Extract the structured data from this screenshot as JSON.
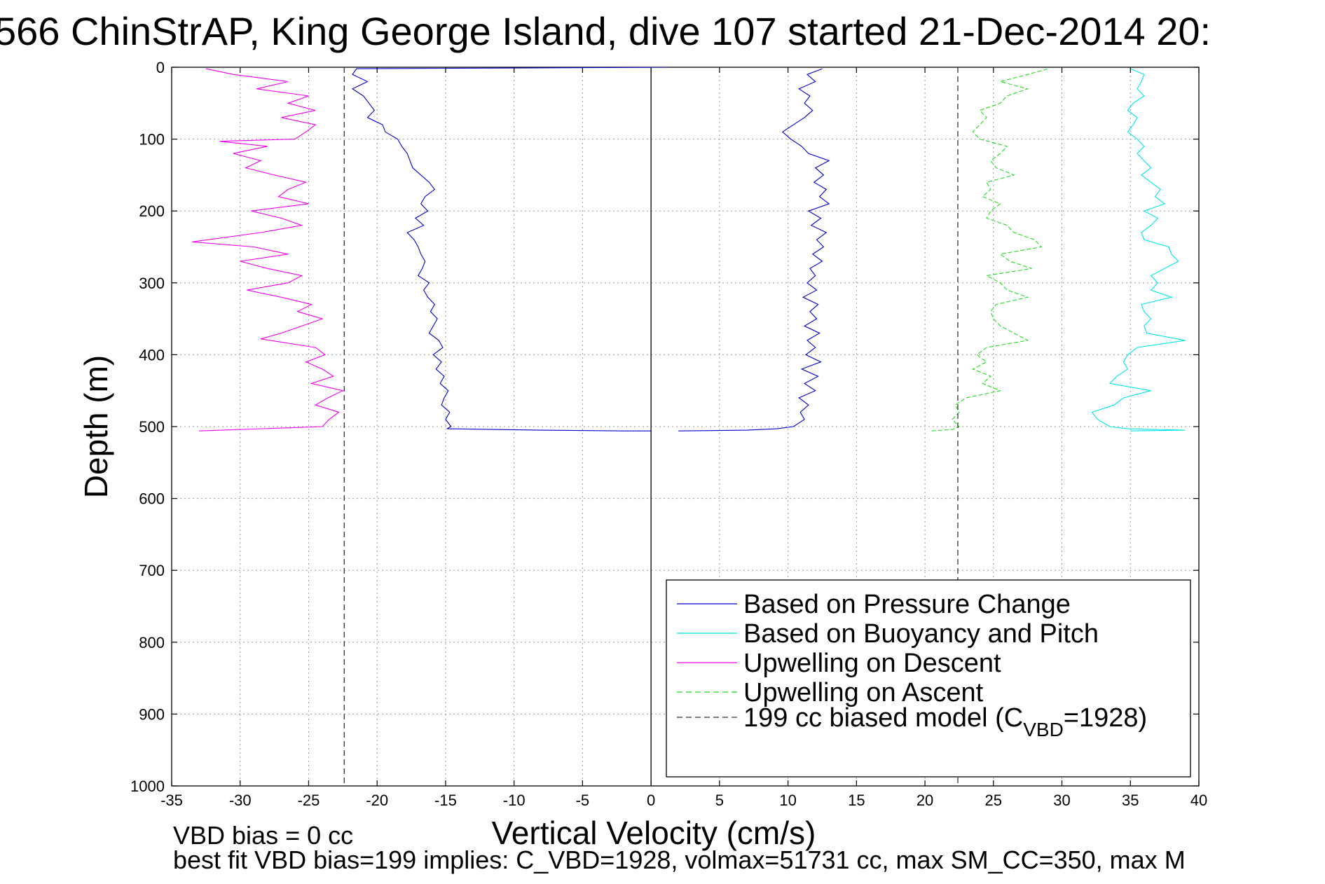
{
  "chart_data": {
    "type": "line",
    "title": "566 ChinStrAP, King George Island, dive 107 started 21-Dec-2014 20:",
    "xlabel": "Vertical Velocity (cm/s)",
    "ylabel": "Depth (m)",
    "xlim": [
      -35,
      40
    ],
    "ylim": [
      0,
      1000
    ],
    "y_reversed": true,
    "x_ticks": [
      -35,
      -30,
      -25,
      -20,
      -15,
      -10,
      -5,
      0,
      5,
      10,
      15,
      20,
      25,
      30,
      35,
      40
    ],
    "y_ticks": [
      0,
      100,
      200,
      300,
      400,
      500,
      600,
      700,
      800,
      900,
      1000
    ],
    "grid": true,
    "legend_position": "bottom-right",
    "annotations": [
      "VBD bias = 0 cc",
      "best fit VBD bias=199 implies: C_VBD=1928, volmax=51731 cc, max SM_CC=350, max M"
    ],
    "series": [
      {
        "name": "Based on Pressure Change",
        "color": "#0000cc",
        "style": "solid",
        "points": [
          [
            1.2,
            0
          ],
          [
            -21.5,
            2
          ],
          [
            -21.8,
            10
          ],
          [
            -20.7,
            20
          ],
          [
            -21.8,
            30
          ],
          [
            -21.0,
            40
          ],
          [
            -20.6,
            50
          ],
          [
            -20.2,
            60
          ],
          [
            -20.7,
            70
          ],
          [
            -19.6,
            80
          ],
          [
            -19.4,
            90
          ],
          [
            -18.5,
            100
          ],
          [
            -18.2,
            110
          ],
          [
            -17.8,
            120
          ],
          [
            -17.6,
            130
          ],
          [
            -17.4,
            140
          ],
          [
            -16.8,
            150
          ],
          [
            -16.2,
            160
          ],
          [
            -15.8,
            170
          ],
          [
            -16.5,
            180
          ],
          [
            -16.8,
            190
          ],
          [
            -16.3,
            200
          ],
          [
            -17.2,
            210
          ],
          [
            -16.6,
            220
          ],
          [
            -17.8,
            230
          ],
          [
            -17.3,
            240
          ],
          [
            -17.0,
            250
          ],
          [
            -16.8,
            260
          ],
          [
            -16.5,
            270
          ],
          [
            -16.7,
            280
          ],
          [
            -17.0,
            290
          ],
          [
            -16.2,
            300
          ],
          [
            -16.6,
            310
          ],
          [
            -16.3,
            320
          ],
          [
            -15.8,
            330
          ],
          [
            -16.1,
            340
          ],
          [
            -15.6,
            350
          ],
          [
            -15.9,
            360
          ],
          [
            -16.2,
            370
          ],
          [
            -15.5,
            380
          ],
          [
            -15.2,
            390
          ],
          [
            -15.9,
            400
          ],
          [
            -15.3,
            410
          ],
          [
            -15.7,
            420
          ],
          [
            -15.1,
            430
          ],
          [
            -15.4,
            440
          ],
          [
            -14.8,
            450
          ],
          [
            -15.1,
            460
          ],
          [
            -15.3,
            470
          ],
          [
            -14.7,
            480
          ],
          [
            -15.0,
            490
          ],
          [
            -14.6,
            500
          ],
          [
            -14.9,
            503
          ],
          [
            -8.0,
            505
          ],
          [
            -2.0,
            506
          ],
          [
            0,
            506
          ]
        ]
      },
      {
        "name": "Based on Pressure Change",
        "color": "#0000cc",
        "style": "solid",
        "points": [
          [
            2.0,
            506
          ],
          [
            7.0,
            505
          ],
          [
            9.2,
            503
          ],
          [
            10.4,
            500
          ],
          [
            11.2,
            490
          ],
          [
            10.9,
            480
          ],
          [
            11.5,
            470
          ],
          [
            10.8,
            460
          ],
          [
            12.0,
            450
          ],
          [
            11.2,
            440
          ],
          [
            12.2,
            430
          ],
          [
            11.0,
            420
          ],
          [
            12.4,
            410
          ],
          [
            11.3,
            400
          ],
          [
            12.0,
            390
          ],
          [
            11.4,
            380
          ],
          [
            12.3,
            370
          ],
          [
            11.2,
            360
          ],
          [
            12.1,
            350
          ],
          [
            11.6,
            340
          ],
          [
            12.2,
            330
          ],
          [
            11.1,
            320
          ],
          [
            12.1,
            310
          ],
          [
            11.4,
            300
          ],
          [
            12.0,
            290
          ],
          [
            11.6,
            280
          ],
          [
            12.5,
            270
          ],
          [
            11.8,
            260
          ],
          [
            12.6,
            250
          ],
          [
            12.1,
            240
          ],
          [
            12.8,
            230
          ],
          [
            11.7,
            220
          ],
          [
            12.4,
            210
          ],
          [
            11.5,
            200
          ],
          [
            13.0,
            190
          ],
          [
            12.3,
            180
          ],
          [
            12.8,
            170
          ],
          [
            11.9,
            160
          ],
          [
            12.6,
            150
          ],
          [
            12.0,
            140
          ],
          [
            13.0,
            130
          ],
          [
            11.5,
            120
          ],
          [
            11.0,
            110
          ],
          [
            10.2,
            100
          ],
          [
            9.6,
            90
          ],
          [
            10.4,
            80
          ],
          [
            11.2,
            70
          ],
          [
            11.8,
            60
          ],
          [
            11.2,
            50
          ],
          [
            11.6,
            40
          ],
          [
            10.8,
            30
          ],
          [
            12.0,
            20
          ],
          [
            11.4,
            10
          ],
          [
            12.5,
            2
          ]
        ]
      },
      {
        "name": "Based on Buoyancy and Pitch",
        "color": "#00e5ee",
        "style": "solid",
        "points": [
          [
            35.0,
            506
          ],
          [
            39.0,
            505
          ],
          [
            34.8,
            503
          ],
          [
            33.5,
            500
          ],
          [
            32.6,
            490
          ],
          [
            32.2,
            480
          ],
          [
            33.8,
            470
          ],
          [
            34.5,
            460
          ],
          [
            36.5,
            450
          ],
          [
            33.5,
            440
          ],
          [
            34.0,
            430
          ],
          [
            34.8,
            420
          ],
          [
            34.5,
            410
          ],
          [
            34.8,
            400
          ],
          [
            35.5,
            390
          ],
          [
            39.0,
            380
          ],
          [
            36.2,
            370
          ],
          [
            36.0,
            360
          ],
          [
            36.5,
            350
          ],
          [
            36.0,
            340
          ],
          [
            35.8,
            330
          ],
          [
            38.0,
            320
          ],
          [
            36.5,
            310
          ],
          [
            37.0,
            300
          ],
          [
            36.5,
            290
          ],
          [
            37.5,
            280
          ],
          [
            38.5,
            270
          ],
          [
            38.0,
            260
          ],
          [
            37.8,
            250
          ],
          [
            36.0,
            240
          ],
          [
            35.8,
            230
          ],
          [
            36.5,
            220
          ],
          [
            37.0,
            210
          ],
          [
            36.0,
            200
          ],
          [
            37.5,
            190
          ],
          [
            36.8,
            180
          ],
          [
            37.2,
            170
          ],
          [
            36.5,
            160
          ],
          [
            35.8,
            150
          ],
          [
            36.5,
            140
          ],
          [
            36.0,
            130
          ],
          [
            35.5,
            120
          ],
          [
            36.0,
            110
          ],
          [
            35.5,
            100
          ],
          [
            34.8,
            90
          ],
          [
            35.2,
            80
          ],
          [
            35.5,
            70
          ],
          [
            34.8,
            60
          ],
          [
            35.2,
            50
          ],
          [
            36.0,
            40
          ],
          [
            35.5,
            30
          ],
          [
            35.8,
            20
          ],
          [
            36.0,
            10
          ],
          [
            35.0,
            2
          ]
        ]
      },
      {
        "name": "Upwelling on Descent",
        "color": "#ee00ee",
        "style": "solid",
        "points": [
          [
            -32.5,
            2
          ],
          [
            -30.5,
            10
          ],
          [
            -26.5,
            20
          ],
          [
            -28.8,
            30
          ],
          [
            -25.0,
            40
          ],
          [
            -26.5,
            50
          ],
          [
            -24.5,
            60
          ],
          [
            -27.0,
            70
          ],
          [
            -24.5,
            80
          ],
          [
            -25.2,
            90
          ],
          [
            -26.0,
            100
          ],
          [
            -31.5,
            103
          ],
          [
            -28.0,
            110
          ],
          [
            -30.5,
            120
          ],
          [
            -28.5,
            130
          ],
          [
            -29.6,
            140
          ],
          [
            -27.5,
            150
          ],
          [
            -25.2,
            160
          ],
          [
            -26.5,
            170
          ],
          [
            -27.2,
            180
          ],
          [
            -25.0,
            190
          ],
          [
            -29.2,
            200
          ],
          [
            -27.0,
            210
          ],
          [
            -25.5,
            220
          ],
          [
            -28.5,
            230
          ],
          [
            -33.5,
            243
          ],
          [
            -29.0,
            250
          ],
          [
            -26.5,
            260
          ],
          [
            -30.0,
            270
          ],
          [
            -28.0,
            280
          ],
          [
            -25.5,
            290
          ],
          [
            -26.5,
            300
          ],
          [
            -29.5,
            310
          ],
          [
            -27.0,
            320
          ],
          [
            -24.8,
            330
          ],
          [
            -25.8,
            340
          ],
          [
            -24.0,
            350
          ],
          [
            -25.5,
            360
          ],
          [
            -27.0,
            370
          ],
          [
            -28.5,
            378
          ],
          [
            -24.5,
            390
          ],
          [
            -23.8,
            400
          ],
          [
            -25.2,
            410
          ],
          [
            -24.0,
            420
          ],
          [
            -23.2,
            430
          ],
          [
            -24.8,
            440
          ],
          [
            -22.5,
            450
          ],
          [
            -23.6,
            460
          ],
          [
            -24.5,
            470
          ],
          [
            -22.8,
            480
          ],
          [
            -23.5,
            490
          ],
          [
            -24.0,
            500
          ],
          [
            -33.0,
            506
          ]
        ]
      },
      {
        "name": "Upwelling on Ascent",
        "color": "#22dd22",
        "style": "dashed",
        "points": [
          [
            20.5,
            506
          ],
          [
            22.0,
            504
          ],
          [
            22.5,
            500
          ],
          [
            22.0,
            490
          ],
          [
            22.5,
            480
          ],
          [
            22.2,
            470
          ],
          [
            23.0,
            460
          ],
          [
            25.5,
            450
          ],
          [
            24.2,
            440
          ],
          [
            24.8,
            430
          ],
          [
            23.5,
            420
          ],
          [
            24.5,
            410
          ],
          [
            23.8,
            400
          ],
          [
            24.5,
            390
          ],
          [
            27.5,
            380
          ],
          [
            26.5,
            370
          ],
          [
            25.5,
            360
          ],
          [
            25.0,
            350
          ],
          [
            24.8,
            340
          ],
          [
            25.2,
            330
          ],
          [
            27.5,
            320
          ],
          [
            26.0,
            310
          ],
          [
            25.5,
            300
          ],
          [
            24.5,
            290
          ],
          [
            27.8,
            280
          ],
          [
            26.2,
            270
          ],
          [
            25.5,
            260
          ],
          [
            28.5,
            250
          ],
          [
            28.0,
            240
          ],
          [
            26.5,
            230
          ],
          [
            26.0,
            220
          ],
          [
            24.5,
            210
          ],
          [
            24.8,
            200
          ],
          [
            25.5,
            190
          ],
          [
            24.2,
            180
          ],
          [
            24.8,
            170
          ],
          [
            24.5,
            160
          ],
          [
            26.5,
            150
          ],
          [
            25.2,
            140
          ],
          [
            24.8,
            130
          ],
          [
            25.5,
            120
          ],
          [
            26.0,
            110
          ],
          [
            24.0,
            100
          ],
          [
            23.5,
            90
          ],
          [
            24.0,
            80
          ],
          [
            24.5,
            70
          ],
          [
            24.0,
            60
          ],
          [
            25.5,
            50
          ],
          [
            26.0,
            40
          ],
          [
            27.5,
            30
          ],
          [
            25.5,
            20
          ],
          [
            27.5,
            10
          ],
          [
            29.0,
            2
          ]
        ]
      },
      {
        "name": "199 cc biased model (CVBD=1928)",
        "color": "#333333",
        "style": "dashed",
        "points": [
          [
            -22.4,
            0
          ],
          [
            -22.4,
            1000
          ]
        ]
      },
      {
        "name": "199 cc biased model (CVBD=1928)",
        "color": "#333333",
        "style": "dashed",
        "points": [
          [
            22.4,
            0
          ],
          [
            22.4,
            1000
          ]
        ]
      }
    ],
    "legend": [
      {
        "label": "Based on Pressure Change",
        "color": "#0000cc",
        "style": "solid"
      },
      {
        "label": "Based on Buoyancy and Pitch",
        "color": "#00e5ee",
        "style": "solid"
      },
      {
        "label": "Upwelling on Descent",
        "color": "#ee00ee",
        "style": "solid"
      },
      {
        "label": "Upwelling on Ascent",
        "color": "#22dd22",
        "style": "dashed"
      },
      {
        "label_main": "199 cc biased model (C",
        "label_sub": "VBD",
        "label_tail": "=1928)",
        "color": "#333333",
        "style": "dashed"
      }
    ]
  }
}
